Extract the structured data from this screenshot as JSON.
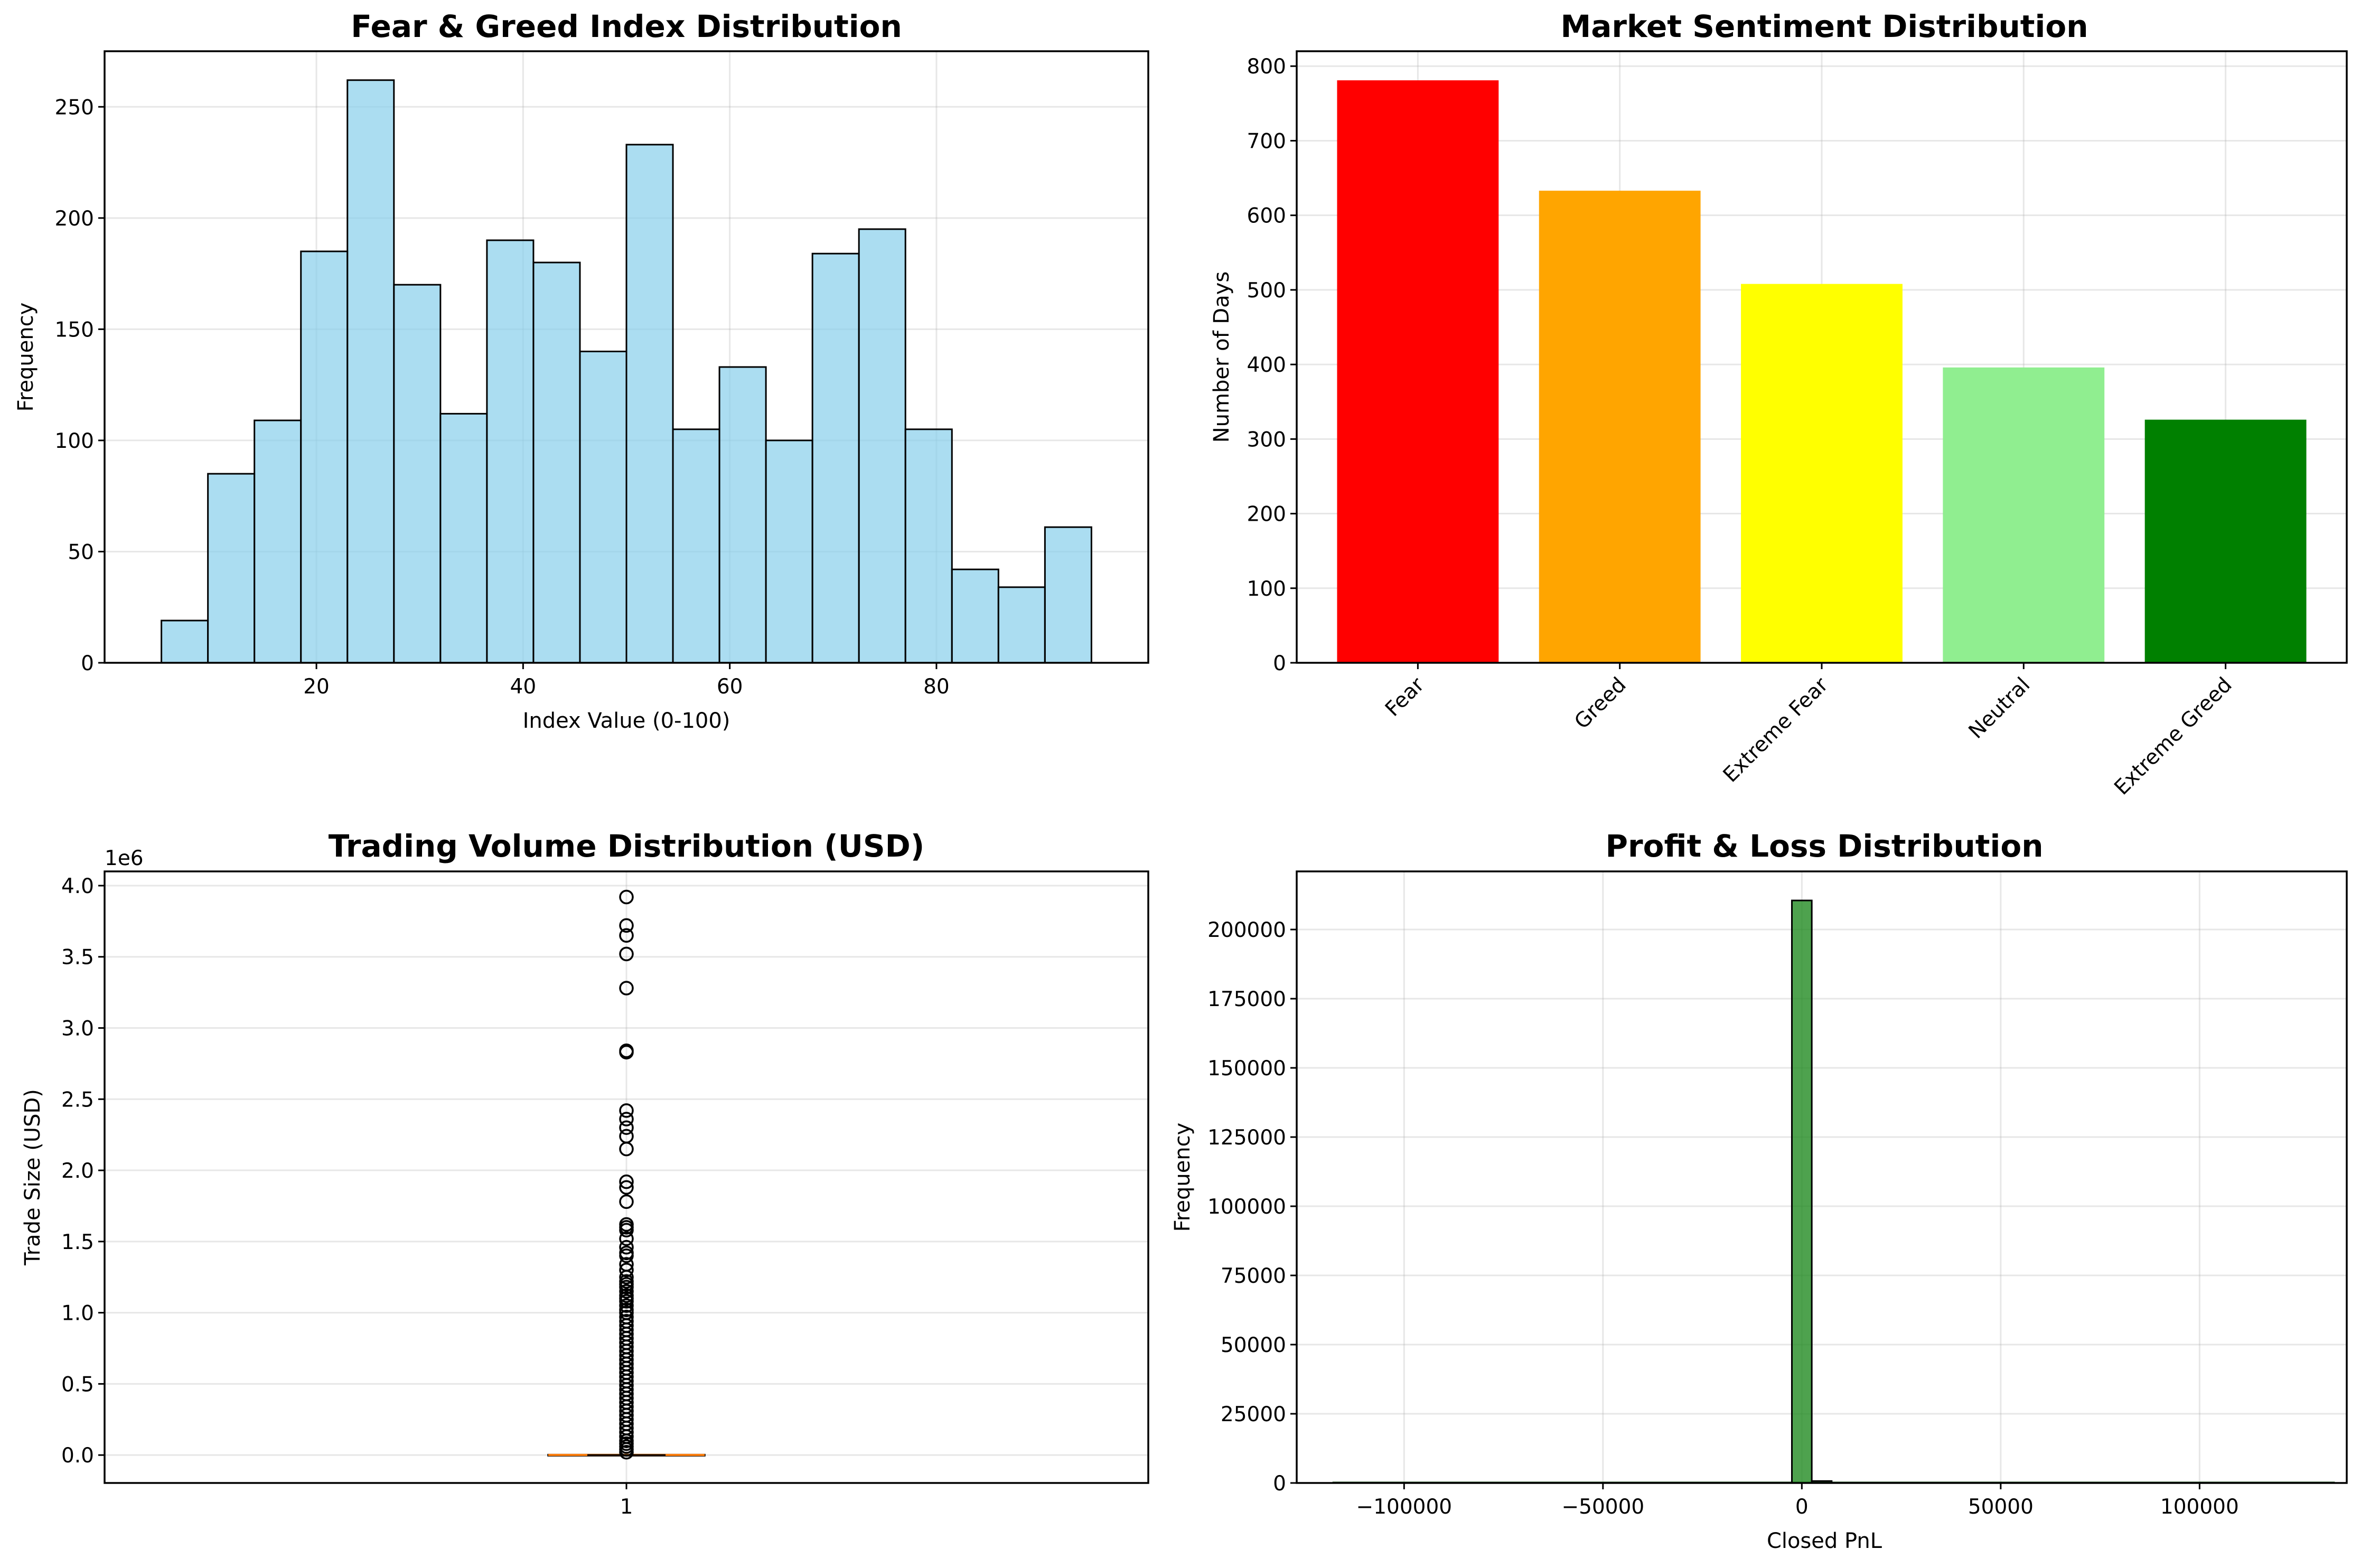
{
  "charts": [
    {
      "title": "Fear & Greed Index Distribution",
      "xlabel": "Index Value (0-100)",
      "ylabel": "Frequency"
    },
    {
      "title": "Market Sentiment Distribution",
      "xlabel": "",
      "ylabel": "Number of Days"
    },
    {
      "title": "Trading Volume Distribution (USD)",
      "xlabel": "",
      "ylabel": "Trade Size (USD)",
      "offset_label": "1e6"
    },
    {
      "title": "Profit & Loss Distribution",
      "xlabel": "Closed PnL",
      "ylabel": "Frequency"
    }
  ],
  "chart_data": [
    {
      "type": "histogram",
      "title": "Fear & Greed Index Distribution",
      "xlabel": "Index Value (0-100)",
      "ylabel": "Frequency",
      "bin_edges": [
        5,
        9.5,
        14,
        18.5,
        23,
        27.5,
        32,
        36.5,
        41,
        45.5,
        50,
        54.5,
        59,
        63.5,
        68,
        72.5,
        77,
        81.5,
        86,
        90.5,
        95
      ],
      "values": [
        19,
        85,
        109,
        185,
        262,
        170,
        112,
        190,
        180,
        140,
        233,
        105,
        133,
        100,
        184,
        195,
        105,
        42,
        34,
        61
      ],
      "xlim": [
        -0.5,
        100.5
      ],
      "ylim": [
        0,
        275
      ],
      "xticks": [
        "20",
        "40",
        "60",
        "80"
      ],
      "yticks": [
        "0",
        "50",
        "100",
        "150",
        "200",
        "250"
      ],
      "color": "#87ceeb",
      "grid": true
    },
    {
      "type": "bar",
      "title": "Market Sentiment Distribution",
      "xlabel": "",
      "ylabel": "Number of Days",
      "categories": [
        "Fear",
        "Greed",
        "Extreme Fear",
        "Neutral",
        "Extreme Greed"
      ],
      "values": [
        781,
        633,
        508,
        396,
        326
      ],
      "colors": [
        "#ff0000",
        "#ffa500",
        "#ffff00",
        "#90ee90",
        "#008000"
      ],
      "ylim": [
        0,
        820
      ],
      "yticks": [
        "0",
        "100",
        "200",
        "300",
        "400",
        "500",
        "600",
        "700",
        "800"
      ],
      "grid": true
    },
    {
      "type": "box",
      "title": "Trading Volume Distribution (USD)",
      "xlabel": "",
      "ylabel": "Trade Size (USD)",
      "categories": [
        "1"
      ],
      "scale_label": "1e6",
      "median": 0.001,
      "q1": 0.0,
      "q3": 0.003,
      "outliers": [
        3.92,
        3.72,
        3.65,
        3.52,
        3.28,
        2.84,
        2.83,
        2.42,
        2.36,
        2.3,
        2.24,
        2.15,
        1.92,
        1.88,
        1.78,
        1.62,
        1.6,
        1.58,
        1.52,
        1.46,
        1.42,
        1.4,
        1.34,
        1.3,
        1.25,
        1.22,
        1.2,
        1.18,
        1.15,
        1.12,
        1.1,
        1.08,
        1.05,
        1.02,
        1.0,
        0.97,
        0.94,
        0.91,
        0.88,
        0.85,
        0.82,
        0.79,
        0.76,
        0.73,
        0.7,
        0.67,
        0.64,
        0.61,
        0.58,
        0.55,
        0.52,
        0.49,
        0.46,
        0.43,
        0.4,
        0.37,
        0.34,
        0.31,
        0.28,
        0.25,
        0.22,
        0.19,
        0.16,
        0.13,
        0.1,
        0.08,
        0.06,
        0.04,
        0.02
      ],
      "ylim": [
        -0.196,
        4.1
      ],
      "yticks": [
        "0.0",
        "0.5",
        "1.0",
        "1.5",
        "2.0",
        "2.5",
        "3.0",
        "3.5",
        "4.0"
      ],
      "colors": {
        "median": "#ff7f0e",
        "box": "#000000"
      },
      "grid": true
    },
    {
      "type": "histogram",
      "title": "Profit & Loss Distribution",
      "xlabel": "Closed PnL",
      "ylabel": "Frequency",
      "bin_edges": [
        -2500,
        2500,
        7500
      ],
      "values": [
        210500,
        700
      ],
      "xlim": [
        -127000,
        137000
      ],
      "ylim": [
        0,
        221000
      ],
      "xticks": [
        "−100000",
        "−50000",
        "0",
        "50000",
        "100000"
      ],
      "yticks": [
        "0",
        "25000",
        "50000",
        "75000",
        "100000",
        "125000",
        "150000",
        "175000",
        "200000"
      ],
      "color": "#228b22",
      "grid": true
    }
  ]
}
